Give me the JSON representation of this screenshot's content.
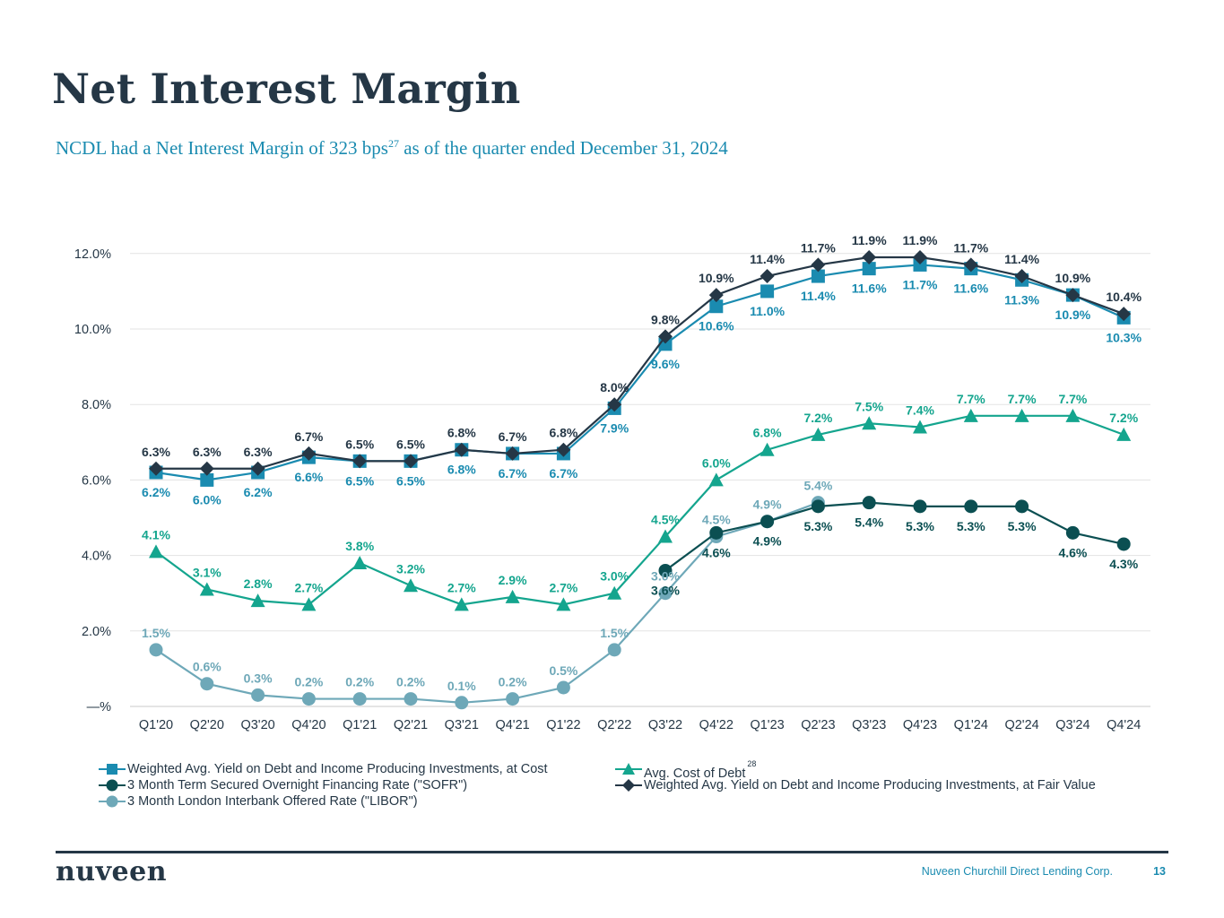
{
  "page": {
    "title": "Net Interest Margin",
    "subtitle_pre": "NCDL had a Net Interest Margin of 323 bps",
    "subtitle_sup": "27",
    "subtitle_post": " as of the quarter ended December 31, 2024",
    "footer_company": "Nuveen Churchill Direct Lending Corp.",
    "page_number": "13",
    "logo_text": "nuveen"
  },
  "chart_data": {
    "type": "line",
    "categories": [
      "Q1'20",
      "Q2'20",
      "Q3'20",
      "Q4'20",
      "Q1'21",
      "Q2'21",
      "Q3'21",
      "Q4'21",
      "Q1'22",
      "Q2'22",
      "Q3'22",
      "Q4'22",
      "Q1'23",
      "Q2'23",
      "Q3'23",
      "Q4'23",
      "Q1'24",
      "Q2'24",
      "Q3'24",
      "Q4'24"
    ],
    "y_ticks": [
      {
        "value": 0,
        "label": "—%"
      },
      {
        "value": 2,
        "label": "2.0%"
      },
      {
        "value": 4,
        "label": "4.0%"
      },
      {
        "value": 6,
        "label": "6.0%"
      },
      {
        "value": 8,
        "label": "8.0%"
      },
      {
        "value": 10,
        "label": "10.0%"
      },
      {
        "value": 12,
        "label": "12.0%"
      }
    ],
    "ylim": [
      0,
      12.5
    ],
    "grid": true,
    "legend_position": "bottom",
    "series": [
      {
        "name": "Weighted Avg. Yield on Debt and Income Producing Investments, at Cost",
        "color": "#1a8bb0",
        "marker": "square",
        "values": [
          6.2,
          6.0,
          6.2,
          6.6,
          6.5,
          6.5,
          6.8,
          6.7,
          6.7,
          7.9,
          9.6,
          10.6,
          11.0,
          11.4,
          11.6,
          11.7,
          11.6,
          11.3,
          10.9,
          10.3
        ],
        "labels": [
          "6.2%",
          "6.0%",
          "6.2%",
          "6.6%",
          "6.5%",
          "6.5%",
          "6.8%",
          "6.7%",
          "6.7%",
          "7.9%",
          "9.6%",
          "10.6%",
          "11.0%",
          "11.4%",
          "11.6%",
          "11.7%",
          "11.6%",
          "11.3%",
          "10.9%",
          "10.3%"
        ],
        "label_pos": "below"
      },
      {
        "name": "Weighted Avg. Yield on Debt and Income Producing Investments, at Fair Value",
        "color": "#253746",
        "marker": "diamond",
        "values": [
          6.3,
          6.3,
          6.3,
          6.7,
          6.5,
          6.5,
          6.8,
          6.7,
          6.8,
          8.0,
          9.8,
          10.9,
          11.4,
          11.7,
          11.9,
          11.9,
          11.7,
          11.4,
          10.9,
          10.4
        ],
        "labels": [
          "6.3%",
          "6.3%",
          "6.3%",
          "6.7%",
          "6.5%",
          "6.5%",
          "6.8%",
          "6.7%",
          "6.8%",
          "8.0%",
          "9.8%",
          "10.9%",
          "11.4%",
          "11.7%",
          "11.9%",
          "11.9%",
          "11.7%",
          "11.4%",
          "10.9%",
          "10.4%"
        ],
        "label_pos": "above"
      },
      {
        "name": "Avg. Cost of Debt",
        "name_sup": "28",
        "color": "#14a58e",
        "marker": "triangle",
        "values": [
          4.1,
          3.1,
          2.8,
          2.7,
          3.8,
          3.2,
          2.7,
          2.9,
          2.7,
          3.0,
          4.5,
          6.0,
          6.8,
          7.2,
          7.5,
          7.4,
          7.7,
          7.7,
          7.7,
          7.2
        ],
        "labels": [
          "4.1%",
          "3.1%",
          "2.8%",
          "2.7%",
          "3.8%",
          "3.2%",
          "2.7%",
          "2.9%",
          "2.7%",
          "3.0%",
          "4.5%",
          "6.0%",
          "6.8%",
          "7.2%",
          "7.5%",
          "7.4%",
          "7.7%",
          "7.7%",
          "7.7%",
          "7.2%"
        ],
        "label_pos": "above"
      },
      {
        "name": "3 Month Term Secured Overnight Financing Rate (\"SOFR\")",
        "color": "#0b4f52",
        "marker": "circle",
        "values": [
          null,
          null,
          null,
          null,
          null,
          null,
          null,
          null,
          null,
          null,
          3.6,
          4.6,
          4.9,
          5.3,
          5.4,
          5.3,
          5.3,
          5.3,
          4.6,
          4.3
        ],
        "labels": [
          null,
          null,
          null,
          null,
          null,
          null,
          null,
          null,
          null,
          null,
          "3.6%",
          "4.6%",
          "4.9%",
          "5.3%",
          "5.4%",
          "5.3%",
          "5.3%",
          "5.3%",
          "4.6%",
          "4.3%"
        ],
        "label_pos": "below"
      },
      {
        "name": "3 Month London Interbank Offered Rate (\"LIBOR\")",
        "color": "#6ea8b8",
        "marker": "circle",
        "values": [
          1.5,
          0.6,
          0.3,
          0.2,
          0.2,
          0.2,
          0.1,
          0.2,
          0.5,
          1.5,
          3.0,
          4.5,
          4.9,
          5.4,
          null,
          null,
          null,
          null,
          null,
          null
        ],
        "labels": [
          "1.5%",
          "0.6%",
          "0.3%",
          "0.2%",
          "0.2%",
          "0.2%",
          "0.1%",
          "0.2%",
          "0.5%",
          "1.5%",
          "3.0%",
          "4.5%",
          "4.9%",
          "5.4%",
          null,
          null,
          null,
          null,
          null,
          null
        ],
        "label_pos": "above"
      }
    ]
  }
}
